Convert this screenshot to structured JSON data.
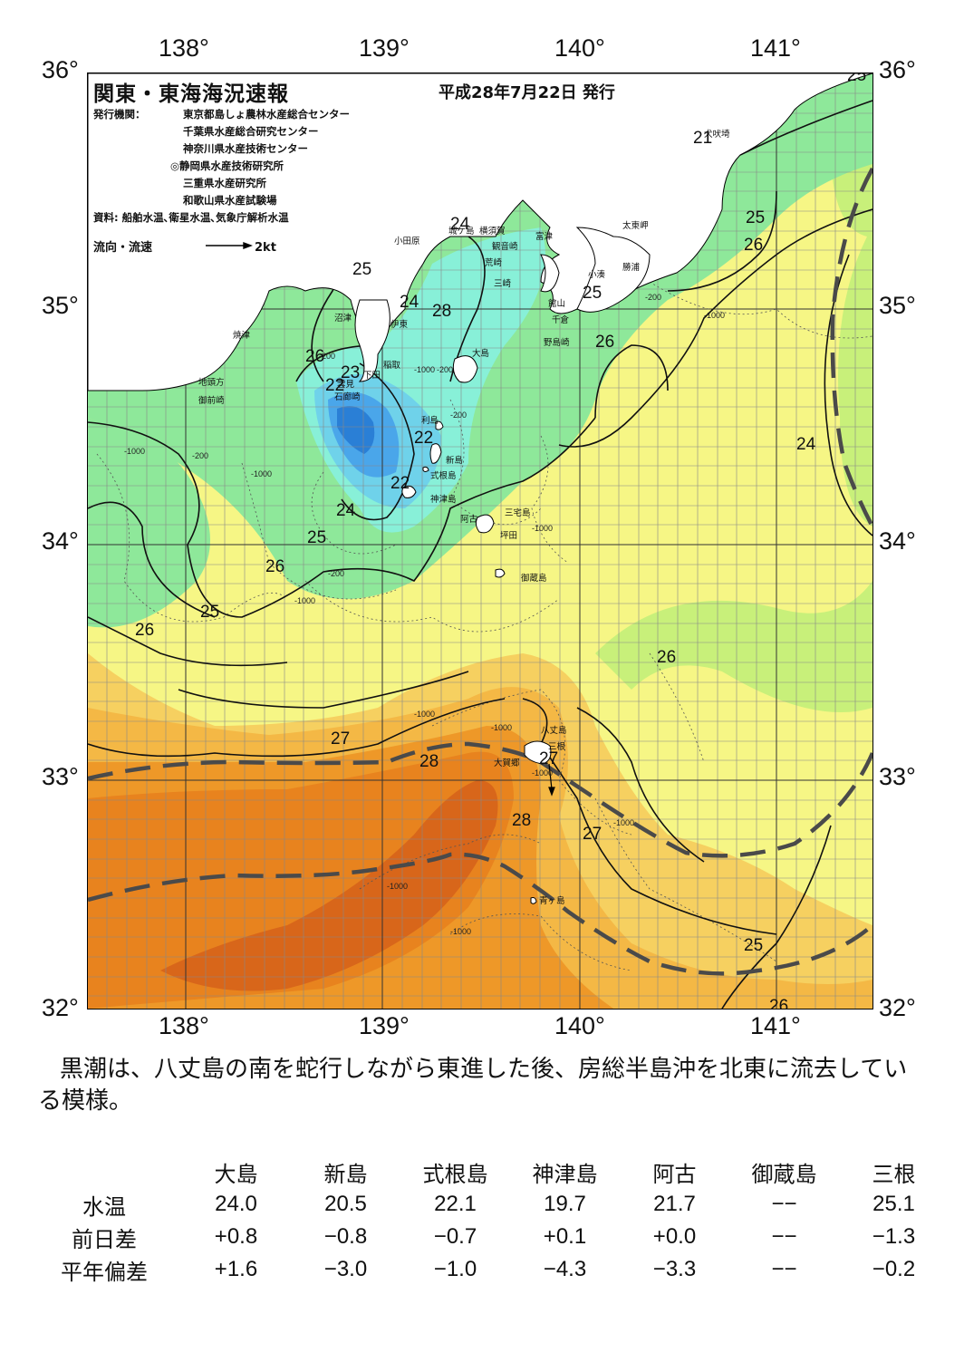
{
  "header": {
    "title": "関東・東海海況速報",
    "date": "平成28年7月22日 発行",
    "publisher_label": "発行機関：",
    "publishers": [
      "東京都島しょ農林水産総合センター",
      "千葉県水産総合研究センター",
      "神奈川県水産技術センター",
      "◎静岡県水産技術研究所",
      "三重県水産研究所",
      "和歌山県水産試験場"
    ],
    "source": "資料: 船舶水温､衛星水温､気象庁解析水温",
    "flow_legend_label": "流向・流速",
    "flow_legend_unit": "2kt"
  },
  "axes": {
    "lon_labels": [
      "138°",
      "139°",
      "140°",
      "141°"
    ],
    "lat_labels": [
      "36°",
      "35°",
      "34°",
      "33°",
      "32°"
    ]
  },
  "places": {
    "odawara": "小田原",
    "yokosuka": "横須賀",
    "kannonzaki": "観音崎",
    "futtsu": "富津",
    "arasaki": "荒崎",
    "misaki": "三崎",
    "jogashima": "城ケ島",
    "kominato": "小湊",
    "katsuura": "勝浦",
    "taitozaki": "太東岬",
    "inubozaki": "犬吠埼",
    "tateyama": "館山",
    "chikura": "千倉",
    "nojimazaki": "野島崎",
    "numazu": "沼津",
    "ito": "伊東",
    "inatori": "稲取",
    "shimoda": "下田",
    "mikomoto": "雲見",
    "irozaki": "石廊崎",
    "yaizu": "焼津",
    "jitogata": "地頭方",
    "omaezaki": "御前崎",
    "oshima": "大島",
    "toshima": "利島",
    "niijima": "新島",
    "shikinejima": "式根島",
    "kozushima": "神津島",
    "miyakejima": "三宅島",
    "ako": "阿古",
    "tsubota": "坪田",
    "mikurajima": "御蔵島",
    "hachijojima": "八丈島",
    "mitsune": "三根",
    "ookago": "大賀郷",
    "aogashima": "青ヶ島"
  },
  "isotherm_labels": [
    "25",
    "24",
    "24",
    "25",
    "23",
    "22",
    "22",
    "22",
    "24",
    "25",
    "26",
    "25",
    "26",
    "27",
    "28",
    "28",
    "27",
    "26",
    "26",
    "25",
    "25",
    "26",
    "24",
    "21",
    "25",
    "26",
    "27",
    "28",
    "26"
  ],
  "depth_labels": [
    "-200",
    "-200",
    "-1000",
    "-200",
    "-1000",
    "-1000",
    "-1000",
    "-200",
    "-200",
    "-1000",
    "-200",
    "-1000",
    "-1000",
    "-1000",
    "-1000",
    "-1000",
    "-1000",
    "-1000"
  ],
  "summary": "黒潮は、八丈島の南を蛇行しながら東進した後、房総半島沖を北東に流去している模様。",
  "stats": {
    "stations": [
      "大島",
      "新島",
      "式根島",
      "神津島",
      "阿古",
      "御蔵島",
      "三根"
    ],
    "rows": [
      {
        "label": "水温",
        "values": [
          "24.0",
          "20.5",
          "22.1",
          "19.7",
          "21.7",
          "−−",
          "25.1"
        ]
      },
      {
        "label": "前日差",
        "values": [
          "+0.8",
          "−0.8",
          "−0.7",
          "+0.1",
          "+0.0",
          "−−",
          "−1.3"
        ]
      },
      {
        "label": "平年偏差",
        "values": [
          "+1.6",
          "−3.0",
          "−1.0",
          "−4.3",
          "−3.3",
          "−−",
          "−0.2"
        ]
      }
    ]
  },
  "colors": {
    "t21": "#2a7fd6",
    "t22": "#4aa6ea",
    "t23": "#6fd2ea",
    "t24": "#88f0d8",
    "t25": "#8ee89a",
    "t26a": "#c8f07a",
    "t26b": "#f6f685",
    "t27": "#f6d060",
    "t27b": "#f4b845",
    "t28": "#ee9828",
    "t29": "#e8831e",
    "t30": "#d8661a",
    "land": "#ffffff",
    "kuroshio": "#4a4a4a"
  }
}
